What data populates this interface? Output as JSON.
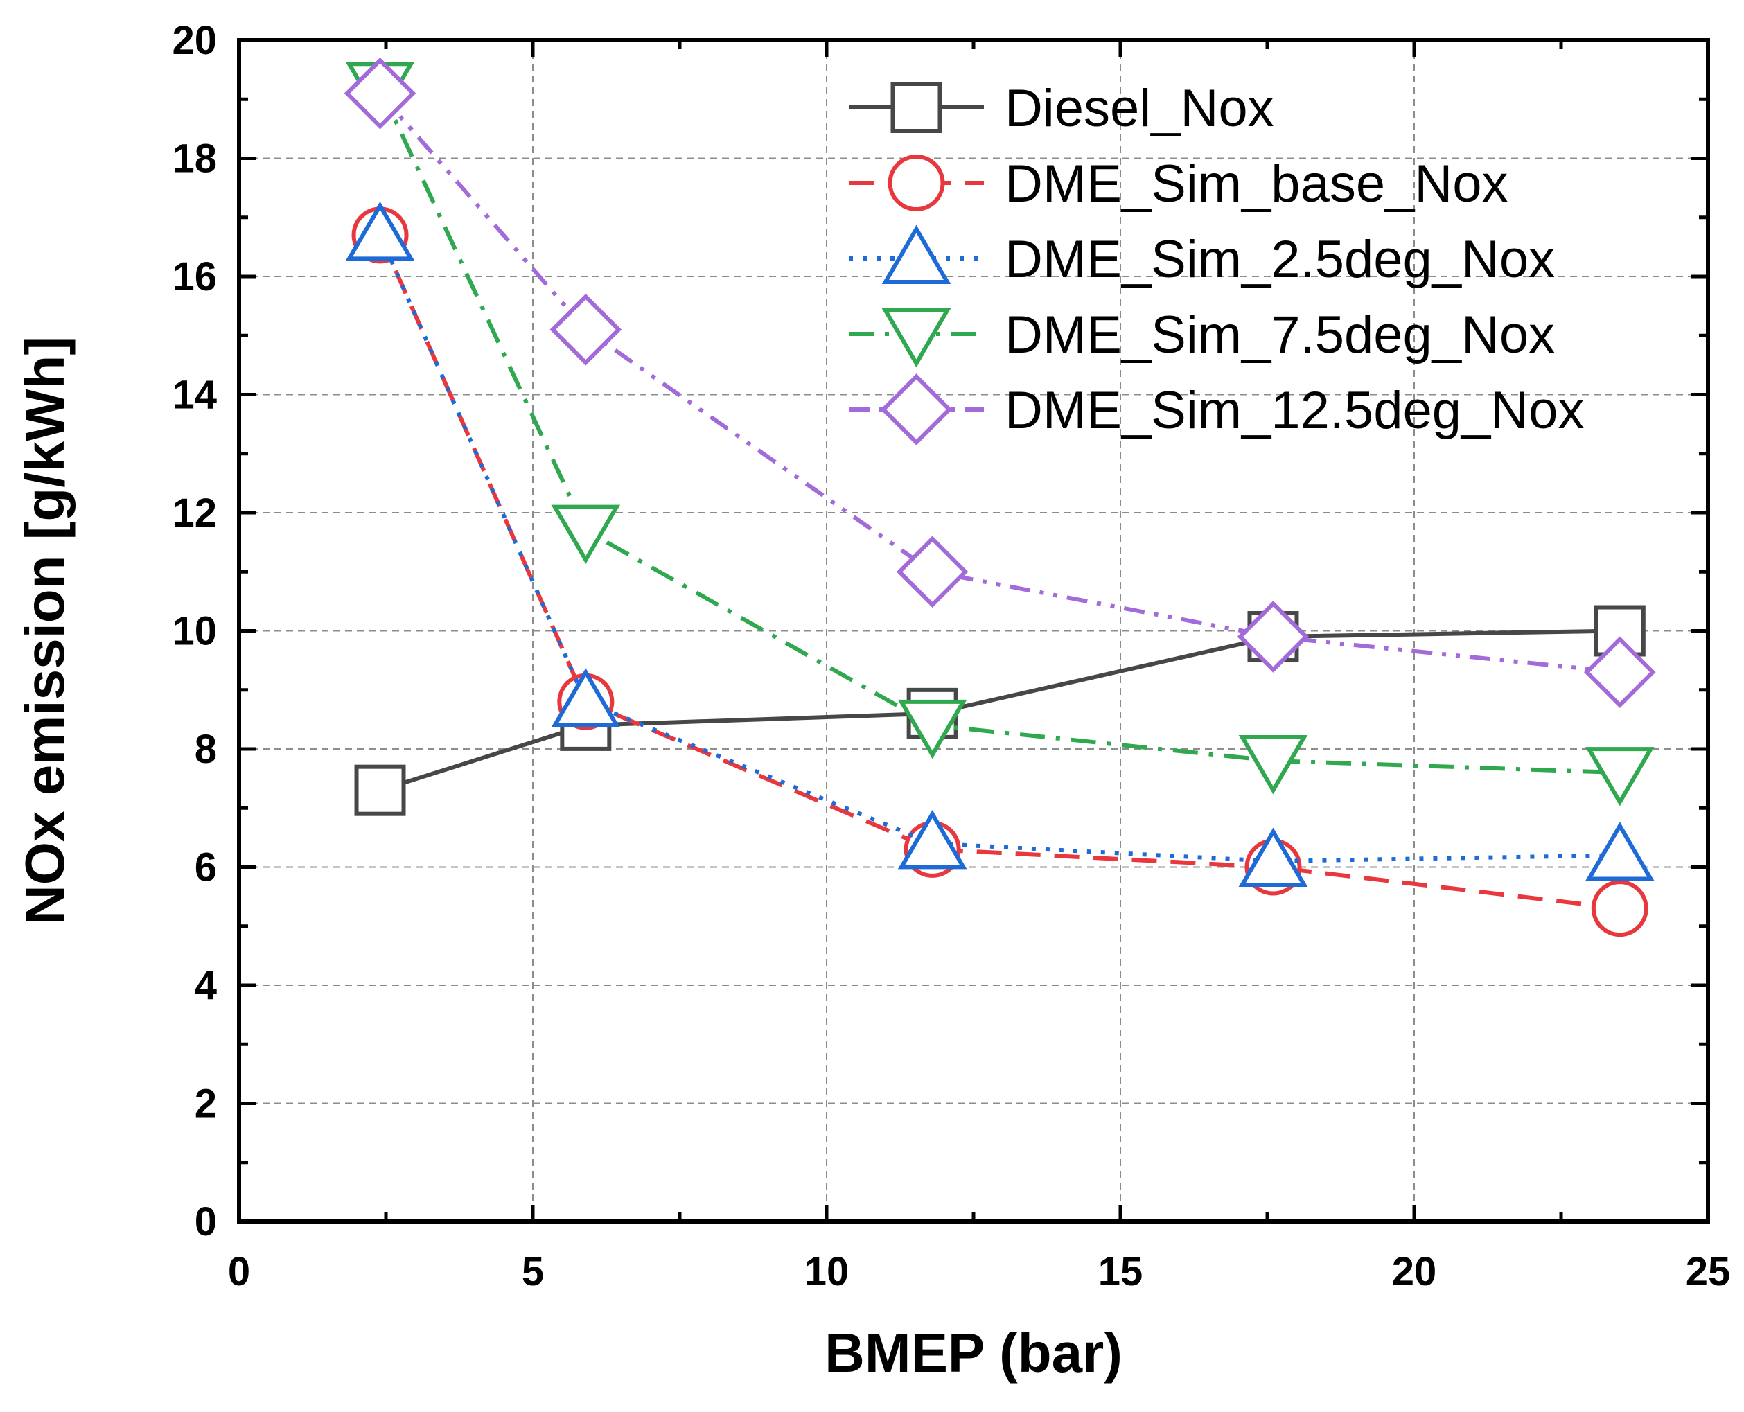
{
  "chart_data": {
    "type": "line",
    "title": "",
    "xlabel": "BMEP (bar)",
    "ylabel": "NOx emission [g/kWh]",
    "xlim": [
      0,
      25
    ],
    "ylim": [
      0,
      20
    ],
    "xticks": [
      0,
      5,
      10,
      15,
      20,
      25
    ],
    "yticks": [
      0,
      2,
      4,
      6,
      8,
      10,
      12,
      14,
      16,
      18,
      20
    ],
    "x_minor_step": 2.5,
    "y_minor_step": 1,
    "grid": true,
    "legend_position": "top-right",
    "series": [
      {
        "name": "Diesel_Nox",
        "color": "#474747",
        "marker": "square",
        "dash": "solid",
        "x": [
          2.4,
          5.9,
          11.8,
          17.6,
          23.5
        ],
        "y": [
          7.3,
          8.4,
          8.6,
          9.9,
          10.0
        ]
      },
      {
        "name": "DME_Sim_base_Nox",
        "color": "#e8383d",
        "marker": "circle",
        "dash": "dash",
        "x": [
          2.4,
          5.9,
          11.8,
          17.6,
          23.5
        ],
        "y": [
          16.7,
          8.8,
          6.3,
          6.0,
          5.3
        ]
      },
      {
        "name": "DME_Sim_2.5deg_Nox",
        "color": "#1e6ad6",
        "marker": "triangle-up",
        "dash": "dot",
        "x": [
          2.4,
          5.9,
          11.8,
          17.6,
          23.5
        ],
        "y": [
          16.7,
          8.8,
          6.4,
          6.1,
          6.2
        ]
      },
      {
        "name": "DME_Sim_7.5deg_Nox",
        "color": "#2fa84f",
        "marker": "triangle-down",
        "dash": "dashdot",
        "x": [
          2.4,
          5.9,
          11.8,
          17.6,
          23.5
        ],
        "y": [
          19.2,
          11.7,
          8.4,
          7.8,
          7.6
        ]
      },
      {
        "name": "DME_Sim_12.5deg_Nox",
        "color": "#a36ad9",
        "marker": "diamond",
        "dash": "dashdotdot",
        "x": [
          2.4,
          5.9,
          11.8,
          17.6,
          23.5
        ],
        "y": [
          19.1,
          15.1,
          11.0,
          9.9,
          9.3
        ]
      }
    ]
  }
}
